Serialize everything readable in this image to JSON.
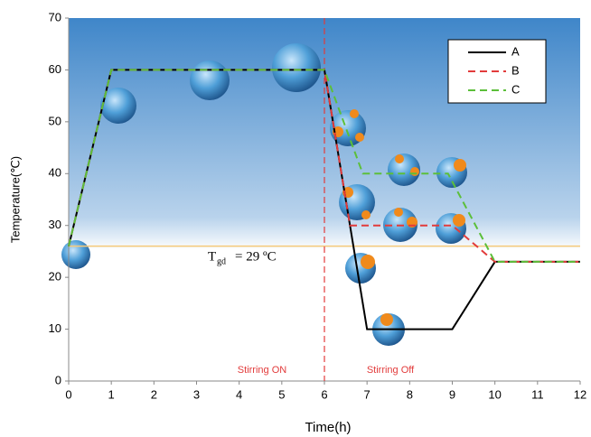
{
  "chart_data": {
    "type": "line",
    "x_label": "Time(h)",
    "y_label": "Temperature(℃)",
    "xlim": [
      0,
      12
    ],
    "ylim": [
      0,
      70
    ],
    "xticks": [
      0,
      1,
      2,
      3,
      4,
      5,
      6,
      7,
      8,
      9,
      10,
      11,
      12
    ],
    "yticks": [
      0,
      10,
      20,
      30,
      40,
      50,
      60,
      70
    ],
    "grid": false,
    "legend": "top-right",
    "series": [
      {
        "name": "A",
        "color": "#000000",
        "line_style": "solid",
        "x": [
          0,
          1,
          6,
          7,
          9,
          10,
          12
        ],
        "values": [
          26,
          60,
          60,
          10,
          10,
          23,
          23
        ]
      },
      {
        "name": "B",
        "color": "#e23b3b",
        "line_style": "dashed",
        "x": [
          0,
          1,
          6,
          6.6,
          9,
          10,
          12
        ],
        "values": [
          26,
          60,
          60,
          30,
          30,
          23,
          23
        ]
      },
      {
        "name": "C",
        "color": "#5cbf3a",
        "line_style": "dashed",
        "x": [
          0,
          1,
          6,
          6.9,
          8.9,
          10,
          12
        ],
        "values": [
          26,
          60,
          60,
          40,
          40,
          23,
          23
        ]
      }
    ],
    "hline": {
      "value": 26,
      "color": "#f5c97a"
    },
    "vline": {
      "value": 6,
      "color": "#e23b3b"
    },
    "annotations": {
      "tgd_symbol": "T",
      "tgd_subscript": "gd",
      "tgd_text": "= 29 ºC",
      "stirring_on": "Stirring ON",
      "stirring_off": "Stirring Off"
    }
  }
}
